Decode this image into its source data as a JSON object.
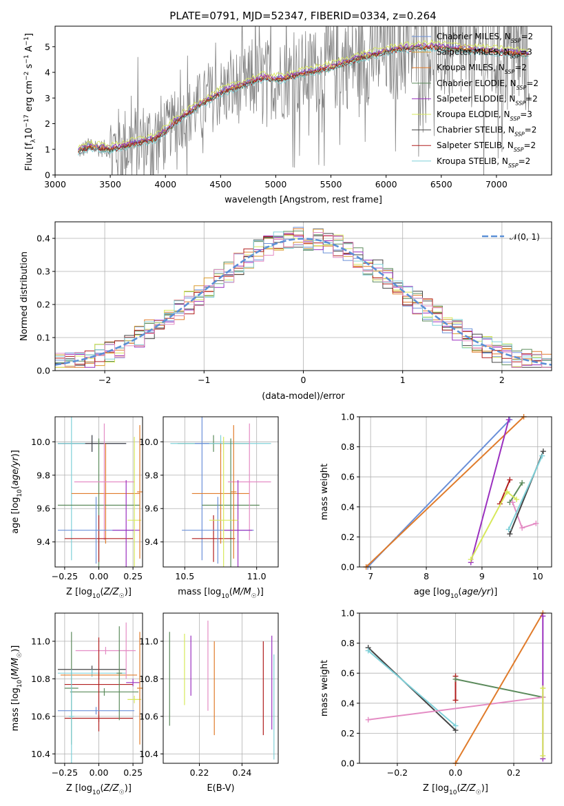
{
  "figure": {
    "title": "PLATE=0791, MJD=52347, FIBERID=0334, z=0.264"
  },
  "colors": {
    "observed": "#808080",
    "chabrier_miles": "#6a8fd8",
    "salpeter_miles": "#d99a2b",
    "kroupa_miles": "#e07b2a",
    "chabrier_elodie": "#5b8a5b",
    "salpeter_elodie": "#9a2fbf",
    "kroupa_elodie": "#d7e85a",
    "chabrier_stelib": "#444444",
    "salpeter_stelib": "#b01c1c",
    "kroupa_stelib": "#7fd0d8",
    "pink": "#e48cc4"
  },
  "chart_data": [
    {
      "id": "spectrum",
      "type": "line",
      "xlabel": "wavelength [Angstrom, rest frame]",
      "ylabel": "Flux [f_λ 10^-17 erg cm^-2 s^-1 A^-1]",
      "xlim": [
        3000,
        7500
      ],
      "ylim": [
        0,
        5.8
      ],
      "xticks": [
        "3000",
        "3500",
        "4000",
        "4500",
        "5000",
        "5500",
        "6000",
        "6500",
        "7000"
      ],
      "yticks": [
        "0",
        "1",
        "2",
        "3",
        "4",
        "5"
      ],
      "legend_position": "upper-right",
      "model_points": {
        "x": [
          3200,
          3300,
          3500,
          3700,
          3900,
          4000,
          4100,
          4300,
          4500,
          4700,
          4900,
          5000,
          5200,
          5500,
          5800,
          6100,
          6400,
          6700,
          7000,
          7300
        ],
        "y": [
          0.9,
          1.1,
          1.0,
          1.2,
          1.4,
          1.7,
          2.1,
          2.7,
          3.2,
          3.5,
          3.8,
          3.7,
          3.9,
          4.2,
          4.6,
          4.9,
          5.0,
          4.9,
          4.8,
          4.7
        ]
      },
      "series": [
        {
          "name": "Chabrier MILES, N_SSP=2",
          "color_key": "chabrier_miles",
          "offset": 0.05
        },
        {
          "name": "Salpeter MILES, N_SSP=3",
          "color_key": "salpeter_miles",
          "offset": 0.0
        },
        {
          "name": "Kroupa MILES, N_SSP=2",
          "color_key": "kroupa_miles",
          "offset": 0.02
        },
        {
          "name": "Chabrier ELODIE, N_SSP=2",
          "color_key": "chabrier_elodie",
          "offset": -0.05
        },
        {
          "name": "Salpeter ELODIE, N_SSP=2",
          "color_key": "salpeter_elodie",
          "offset": 0.08
        },
        {
          "name": "Kroupa ELODIE, N_SSP=3",
          "color_key": "kroupa_elodie",
          "offset": 0.18
        },
        {
          "name": "Chabrier STELIB, N_SSP=2",
          "color_key": "chabrier_stelib",
          "offset": -0.02
        },
        {
          "name": "Salpeter STELIB, N_SSP=2",
          "color_key": "salpeter_stelib",
          "offset": -0.04
        },
        {
          "name": "Kroupa STELIB, N_SSP=2",
          "color_key": "kroupa_stelib",
          "offset": -0.1
        }
      ]
    },
    {
      "id": "residuals",
      "type": "line",
      "xlabel": "(data-model)/error",
      "ylabel": "Normed distribution",
      "xlim": [
        -2.5,
        2.5
      ],
      "ylim": [
        0,
        0.45
      ],
      "xticks": [
        "−2",
        "−1",
        "0",
        "1",
        "2"
      ],
      "yticks": [
        "0.0",
        "0.1",
        "0.2",
        "0.3",
        "0.4"
      ],
      "reference": {
        "name": "𝒩(0, 1)",
        "mean": 0,
        "sigma": 1,
        "color": "#5b8fd6"
      },
      "bin_width": 0.1,
      "legend_position": "upper-right"
    },
    {
      "id": "z-age",
      "type": "scatter",
      "xlabel": "Z [log10(Z/Z☉)]",
      "ylabel": "age [log10(age/yr)]",
      "xlim": [
        -0.32,
        0.32
      ],
      "ylim": [
        9.25,
        10.15
      ],
      "xticks": [
        "−0.25",
        "0.00",
        "0.25"
      ],
      "yticks": [
        "9.4",
        "9.6",
        "9.8",
        "10.0"
      ],
      "points": [
        {
          "x": -0.05,
          "xerr": 0.25,
          "y": 9.99,
          "yerr": 0.05,
          "color_key": "chabrier_miles"
        },
        {
          "x": -0.05,
          "xerr": 0.25,
          "y": 9.99,
          "yerr": 0.05,
          "color_key": "chabrier_stelib"
        },
        {
          "x": -0.2,
          "xerr": 0.1,
          "y": 9.99,
          "yerr": 0.7,
          "color_key": "kroupa_stelib"
        },
        {
          "x": 0.05,
          "xerr": 0.25,
          "y": 9.69,
          "yerr": 0.3,
          "color_key": "kroupa_miles"
        },
        {
          "x": 0.0,
          "xerr": 0.3,
          "y": 9.62,
          "yerr": 0.4,
          "color_key": "chabrier_elodie"
        },
        {
          "x": 0.04,
          "xerr": 0.22,
          "y": 9.76,
          "yerr": 0.35,
          "color_key": "pink"
        },
        {
          "x": 0.0,
          "xerr": 0.25,
          "y": 9.42,
          "yerr": 0.14,
          "color_key": "salpeter_stelib"
        },
        {
          "x": -0.02,
          "xerr": 0.28,
          "y": 9.47,
          "yerr": 0.2,
          "color_key": "chabrier_miles"
        },
        {
          "x": 0.2,
          "xerr": 0.1,
          "y": 9.47,
          "yerr": 0.3,
          "color_key": "salpeter_elodie"
        },
        {
          "x": 0.26,
          "xerr": 0.05,
          "y": 9.53,
          "yerr": 0.5,
          "color_key": "kroupa_elodie"
        },
        {
          "x": 0.3,
          "xerr": 0.02,
          "y": 9.7,
          "yerr": 0.4,
          "color_key": "kroupa_miles"
        }
      ]
    },
    {
      "id": "mass-age",
      "type": "scatter",
      "xlabel": "mass [log10(M/M☉)]",
      "ylabel": "",
      "xlim": [
        10.35,
        11.15
      ],
      "ylim": [
        9.25,
        10.15
      ],
      "xticks": [
        "10.5",
        "11.0"
      ],
      "yticks": [
        "9.4",
        "9.6",
        "9.8",
        "10.0"
      ],
      "points": [
        {
          "x": 10.7,
          "xerr": 0.25,
          "y": 9.99,
          "yerr": 0.05,
          "color_key": "chabrier_elodie"
        },
        {
          "x": 10.75,
          "xerr": 0.35,
          "y": 9.99,
          "yerr": 0.05,
          "color_key": "kroupa_stelib"
        },
        {
          "x": 10.62,
          "xerr": 0.05,
          "y": 9.99,
          "yerr": 0.7,
          "color_key": "chabrier_miles"
        },
        {
          "x": 10.75,
          "xerr": 0.2,
          "y": 9.69,
          "yerr": 0.3,
          "color_key": "kroupa_miles"
        },
        {
          "x": 10.82,
          "xerr": 0.2,
          "y": 9.62,
          "yerr": 0.4,
          "color_key": "chabrier_elodie"
        },
        {
          "x": 10.95,
          "xerr": 0.15,
          "y": 9.76,
          "yerr": 0.35,
          "color_key": "pink"
        },
        {
          "x": 10.7,
          "xerr": 0.15,
          "y": 9.42,
          "yerr": 0.14,
          "color_key": "salpeter_stelib"
        },
        {
          "x": 10.73,
          "xerr": 0.25,
          "y": 9.47,
          "yerr": 0.2,
          "color_key": "chabrier_miles"
        },
        {
          "x": 10.87,
          "xerr": 0.1,
          "y": 9.47,
          "yerr": 0.3,
          "color_key": "salpeter_elodie"
        },
        {
          "x": 10.77,
          "xerr": 0.1,
          "y": 9.53,
          "yerr": 0.5,
          "color_key": "kroupa_elodie"
        },
        {
          "x": 10.84,
          "xerr": 0.02,
          "y": 9.7,
          "yerr": 0.4,
          "color_key": "kroupa_miles"
        }
      ]
    },
    {
      "id": "age-weight",
      "type": "line",
      "xlabel": "age [log10(age/yr)]",
      "ylabel": "mass weight",
      "xlim": [
        6.8,
        10.25
      ],
      "ylim": [
        0,
        1
      ],
      "xticks": [
        "7",
        "8",
        "9",
        "10"
      ],
      "yticks": [
        "0.0",
        "0.2",
        "0.4",
        "0.6",
        "0.8",
        "1.0"
      ],
      "series": [
        {
          "color_key": "chabrier_miles",
          "x": [
            6.95,
            9.5
          ],
          "y": [
            0.0,
            0.98
          ]
        },
        {
          "color_key": "kroupa_miles",
          "x": [
            6.92,
            9.75
          ],
          "y": [
            0.0,
            1.0
          ]
        },
        {
          "color_key": "salpeter_elodie",
          "x": [
            8.8,
            9.48
          ],
          "y": [
            0.03,
            0.98
          ]
        },
        {
          "color_key": "salpeter_stelib",
          "x": [
            9.32,
            9.5
          ],
          "y": [
            0.42,
            0.58
          ]
        },
        {
          "color_key": "chabrier_elodie",
          "x": [
            9.5,
            9.72
          ],
          "y": [
            0.43,
            0.56
          ]
        },
        {
          "color_key": "kroupa_elodie",
          "x": [
            8.8,
            9.45,
            9.62
          ],
          "y": [
            0.05,
            0.5,
            0.45
          ]
        },
        {
          "color_key": "pink",
          "x": [
            9.55,
            9.72,
            9.97
          ],
          "y": [
            0.43,
            0.26,
            0.29
          ]
        },
        {
          "color_key": "chabrier_stelib",
          "x": [
            9.5,
            10.1
          ],
          "y": [
            0.22,
            0.77
          ]
        },
        {
          "color_key": "kroupa_stelib",
          "x": [
            9.48,
            10.08
          ],
          "y": [
            0.25,
            0.74
          ]
        }
      ]
    },
    {
      "id": "z-mass",
      "type": "scatter",
      "xlabel": "Z [log10(Z/Z☉)]",
      "ylabel": "mass [log10(M/M☉)]",
      "xlim": [
        -0.32,
        0.32
      ],
      "ylim": [
        10.35,
        11.15
      ],
      "xticks": [
        "−0.25",
        "0.00",
        "0.25"
      ],
      "yticks": [
        "10.4",
        "10.6",
        "10.8",
        "11.0"
      ],
      "points": [
        {
          "x": -0.05,
          "xerr": 0.25,
          "y": 10.85,
          "yerr": 0.02,
          "color_key": "chabrier_stelib"
        },
        {
          "x": -0.05,
          "xerr": 0.25,
          "y": 10.83,
          "yerr": 0.02,
          "color_key": "kroupa_stelib"
        },
        {
          "x": -0.2,
          "xerr": 0.05,
          "y": 10.75,
          "yerr": 0.3,
          "color_key": "chabrier_elodie"
        },
        {
          "x": 0.0,
          "xerr": 0.28,
          "y": 10.82,
          "yerr": 0.02,
          "color_key": "kroupa_miles"
        },
        {
          "x": 0.04,
          "xerr": 0.25,
          "y": 10.73,
          "yerr": 0.02,
          "color_key": "chabrier_elodie"
        },
        {
          "x": 0.05,
          "xerr": 0.22,
          "y": 10.95,
          "yerr": 0.02,
          "color_key": "pink"
        },
        {
          "x": 0.0,
          "xerr": 0.25,
          "y": 10.77,
          "yerr": 0.25,
          "color_key": "salpeter_stelib"
        },
        {
          "x": -0.02,
          "xerr": 0.28,
          "y": 10.63,
          "yerr": 0.02,
          "color_key": "chabrier_miles"
        },
        {
          "x": 0.0,
          "xerr": 0.25,
          "y": 10.59,
          "yerr": 0.02,
          "color_key": "salpeter_stelib"
        },
        {
          "x": 0.25,
          "xerr": 0.05,
          "y": 10.78,
          "yerr": 0.02,
          "color_key": "salpeter_elodie"
        },
        {
          "x": 0.26,
          "xerr": 0.05,
          "y": 10.69,
          "yerr": 0.02,
          "color_key": "kroupa_elodie"
        },
        {
          "x": 0.2,
          "xerr": 0.02,
          "y": 10.95,
          "yerr": 0.15,
          "color_key": "pink"
        },
        {
          "x": 0.3,
          "xerr": 0.02,
          "y": 10.75,
          "yerr": 0.3,
          "color_key": "kroupa_miles"
        },
        {
          "x": 0.15,
          "xerr": 0.02,
          "y": 10.83,
          "yerr": 0.25,
          "color_key": "chabrier_elodie"
        },
        {
          "x": -0.2,
          "xerr": 0.02,
          "y": 10.6,
          "yerr": 0.25,
          "color_key": "kroupa_stelib"
        }
      ]
    },
    {
      "id": "ebv-mass",
      "type": "scatter",
      "xlabel": "E(B-V)",
      "ylabel": "",
      "xlim": [
        0.203,
        0.257
      ],
      "ylim": [
        10.35,
        11.15
      ],
      "xticks": [
        "0.22",
        "0.24"
      ],
      "yticks": [
        "10.4",
        "10.6",
        "10.8",
        "11.0"
      ],
      "points": [
        {
          "x": 0.206,
          "xerr": 0,
          "y": 10.8,
          "yerr": 0.25,
          "color_key": "chabrier_elodie"
        },
        {
          "x": 0.213,
          "xerr": 0,
          "y": 10.85,
          "yerr": 0.19,
          "color_key": "kroupa_elodie"
        },
        {
          "x": 0.216,
          "xerr": 0,
          "y": 10.87,
          "yerr": 0.16,
          "color_key": "salpeter_elodie"
        },
        {
          "x": 0.224,
          "xerr": 0,
          "y": 10.87,
          "yerr": 0.24,
          "color_key": "pink"
        },
        {
          "x": 0.227,
          "xerr": 0,
          "y": 10.75,
          "yerr": 0.25,
          "color_key": "kroupa_miles"
        },
        {
          "x": 0.25,
          "xerr": 0,
          "y": 10.75,
          "yerr": 0.25,
          "color_key": "salpeter_stelib"
        },
        {
          "x": 0.254,
          "xerr": 0,
          "y": 10.78,
          "yerr": 0.25,
          "color_key": "salpeter_elodie"
        },
        {
          "x": 0.255,
          "xerr": 0,
          "y": 10.65,
          "yerr": 0.28,
          "color_key": "kroupa_stelib"
        }
      ]
    },
    {
      "id": "z-weight",
      "type": "line",
      "xlabel": "Z [log10(Z/Z☉)]",
      "ylabel": "mass weight",
      "xlim": [
        -0.33,
        0.33
      ],
      "ylim": [
        0,
        1
      ],
      "xticks": [
        "−0.2",
        "0.0",
        "0.2"
      ],
      "yticks": [
        "0.0",
        "0.2",
        "0.4",
        "0.6",
        "0.8",
        "1.0"
      ],
      "series": [
        {
          "color_key": "chabrier_stelib",
          "x": [
            -0.3,
            0.0
          ],
          "y": [
            0.77,
            0.22
          ]
        },
        {
          "color_key": "kroupa_stelib",
          "x": [
            -0.3,
            0.0
          ],
          "y": [
            0.75,
            0.25
          ]
        },
        {
          "color_key": "salpeter_stelib",
          "x": [
            0.0,
            0.0
          ],
          "y": [
            0.42,
            0.58
          ]
        },
        {
          "color_key": "chabrier_elodie",
          "x": [
            0.0,
            0.3
          ],
          "y": [
            0.56,
            0.44
          ]
        },
        {
          "color_key": "pink",
          "x": [
            -0.3,
            0.3
          ],
          "y": [
            0.29,
            0.44
          ]
        },
        {
          "color_key": "kroupa_miles",
          "x": [
            0.0,
            0.3
          ],
          "y": [
            0.0,
            1.0
          ]
        },
        {
          "color_key": "salpeter_elodie",
          "x": [
            0.3,
            0.3
          ],
          "y": [
            0.03,
            0.98
          ]
        },
        {
          "color_key": "kroupa_elodie",
          "x": [
            0.3,
            0.3
          ],
          "y": [
            0.05,
            0.5
          ]
        }
      ]
    }
  ]
}
